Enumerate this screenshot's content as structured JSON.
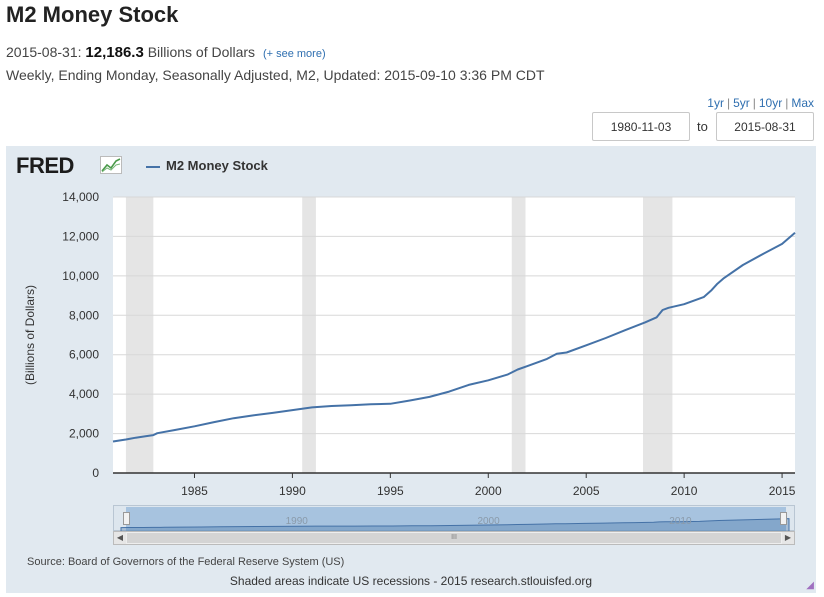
{
  "header": {
    "title": "M2 Money Stock",
    "obs_date": "2015-08-31:",
    "obs_value": "12,186.3",
    "obs_units": "Billions of Dollars",
    "see_more": "(+ see more)",
    "meta": "Weekly, Ending Monday, Seasonally Adjusted, M2, Updated: 2015-09-10 3:36 PM CDT"
  },
  "range": {
    "links": [
      "1yr",
      "5yr",
      "10yr",
      "Max"
    ],
    "start": "1980-11-03",
    "to_label": "to",
    "end": "2015-08-31"
  },
  "logo": {
    "text": "FRED"
  },
  "colors": {
    "series": "#4572a7",
    "recession": "#e5e5e5",
    "panel": "#e1e9f0"
  },
  "chart_data": {
    "type": "line",
    "title": "",
    "ylabel": "(Billions of Dollars)",
    "xlabel": "",
    "xlim": [
      1980.84,
      2015.66
    ],
    "ylim": [
      0,
      14000
    ],
    "yticks": [
      0,
      2000,
      4000,
      6000,
      8000,
      10000,
      12000,
      14000
    ],
    "ytick_labels": [
      "0",
      "2,000",
      "4,000",
      "6,000",
      "8,000",
      "10,000",
      "12,000",
      "14,000"
    ],
    "xticks": [
      1985,
      1990,
      1995,
      2000,
      2005,
      2010,
      2015
    ],
    "xtick_labels": [
      "1985",
      "1990",
      "1995",
      "2000",
      "2005",
      "2010",
      "2015"
    ],
    "grid": true,
    "legend": "top-left",
    "recessions": [
      [
        1981.5,
        1982.9
      ],
      [
        1990.5,
        1991.2
      ],
      [
        2001.2,
        2001.9
      ],
      [
        2007.9,
        2009.4
      ]
    ],
    "series": [
      {
        "name": "M2 Money Stock",
        "x": [
          1980.84,
          1981.5,
          1982.0,
          1982.5,
          1982.9,
          1983.1,
          1984.0,
          1985.0,
          1986.0,
          1987.0,
          1988.0,
          1989.0,
          1990.0,
          1991.0,
          1992.0,
          1993.0,
          1994.0,
          1995.0,
          1996.0,
          1997.0,
          1998.0,
          1999.0,
          2000.0,
          2001.0,
          2001.5,
          2002.0,
          2003.0,
          2003.5,
          2004.0,
          2005.0,
          2006.0,
          2007.0,
          2008.0,
          2008.6,
          2008.9,
          2009.2,
          2010.0,
          2011.0,
          2011.4,
          2011.7,
          2012.0,
          2013.0,
          2014.0,
          2015.0,
          2015.66
        ],
        "values": [
          1600,
          1700,
          1790,
          1860,
          1920,
          2020,
          2180,
          2370,
          2580,
          2780,
          2920,
          3050,
          3190,
          3330,
          3400,
          3440,
          3490,
          3510,
          3680,
          3860,
          4130,
          4470,
          4700,
          5000,
          5250,
          5420,
          5790,
          6050,
          6110,
          6480,
          6850,
          7250,
          7640,
          7900,
          8270,
          8380,
          8560,
          8920,
          9280,
          9600,
          9860,
          10550,
          11100,
          11620,
          12186.3
        ]
      }
    ]
  },
  "navigator": {
    "labels": [
      "1990",
      "2000",
      "2010"
    ],
    "label_years": [
      1990,
      2000,
      2010
    ],
    "min": 1980.84,
    "max": 2015.66,
    "thumb": "III"
  },
  "footer": {
    "source": "Source: Board of Governors of the Federal Reserve System (US)",
    "note": "Shaded areas indicate US recessions - 2015 research.stlouisfed.org"
  }
}
